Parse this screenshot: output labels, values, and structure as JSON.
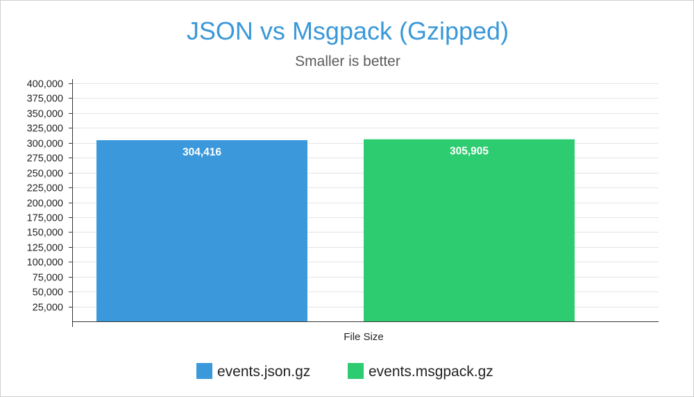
{
  "chart_data": {
    "type": "bar",
    "title": "JSON vs Msgpack (Gzipped)",
    "subtitle": "Smaller is better",
    "xlabel": "File Size",
    "ylabel": "",
    "categories": [
      "File Size"
    ],
    "series": [
      {
        "name": "events.json.gz",
        "values": [
          304416
        ],
        "color": "#3a98db",
        "label": "304,416"
      },
      {
        "name": "events.msgpack.gz",
        "values": [
          305905
        ],
        "color": "#2ecc71",
        "label": "305,905"
      }
    ],
    "ylim": [
      0,
      400000
    ],
    "ytick_step": 25000,
    "y_tick_labels": [
      "25,000",
      "50,000",
      "75,000",
      "100,000",
      "125,000",
      "150,000",
      "175,000",
      "200,000",
      "225,000",
      "250,000",
      "275,000",
      "300,000",
      "325,000",
      "350,000",
      "375,000",
      "400,000"
    ],
    "y_tick_values": [
      25000,
      50000,
      75000,
      100000,
      125000,
      150000,
      175000,
      200000,
      225000,
      250000,
      275000,
      300000,
      325000,
      350000,
      375000,
      400000
    ],
    "grid": true,
    "legend_position": "bottom-center"
  }
}
